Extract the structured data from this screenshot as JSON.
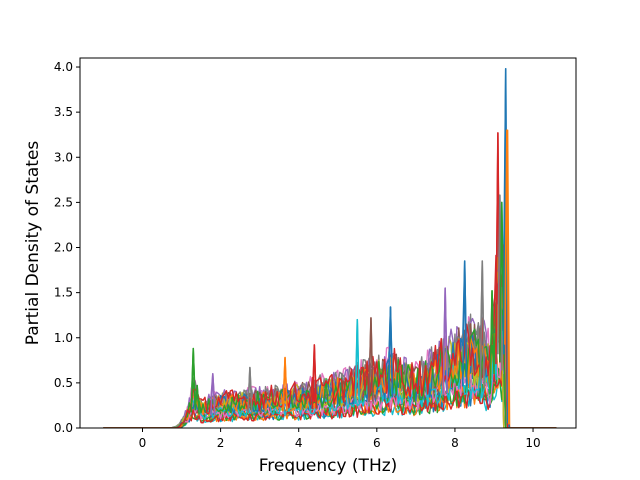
{
  "chart_data": {
    "type": "line",
    "title": "",
    "xlabel": "Frequency (THz)",
    "ylabel": "Partial Density of States",
    "xlim": [
      -1.6,
      11.1
    ],
    "ylim": [
      0.0,
      4.1
    ],
    "xticks": [
      0,
      2,
      4,
      6,
      8,
      10
    ],
    "yticks": [
      0.0,
      0.5,
      1.0,
      1.5,
      2.0,
      2.5,
      3.0,
      3.5,
      4.0
    ],
    "xtick_labels": [
      "0",
      "2",
      "4",
      "6",
      "8",
      "10"
    ],
    "ytick_labels": [
      "0.0",
      "0.5",
      "1.0",
      "1.5",
      "2.0",
      "2.5",
      "3.0",
      "3.5",
      "4.0"
    ],
    "grid": false,
    "legend": "none",
    "series_count": 24,
    "palette": [
      "#1f77b4",
      "#ff7f0e",
      "#2ca02c",
      "#d62728",
      "#9467bd",
      "#8c564b",
      "#e377c2",
      "#7f7f7f",
      "#bcbd22",
      "#17becf"
    ],
    "x_range_of_curves": [
      -1.0,
      10.6
    ],
    "frequency_step": 0.05,
    "envelope": {
      "x": [
        -1.0,
        0.5,
        0.9,
        1.2,
        1.3,
        1.5,
        2.0,
        3.0,
        4.0,
        5.0,
        6.0,
        6.4,
        7.0,
        7.8,
        8.2,
        8.7,
        8.9,
        9.1,
        9.2,
        9.3,
        9.35,
        9.5,
        10.6
      ],
      "y": [
        0.0,
        0.0,
        0.12,
        0.5,
        0.88,
        0.5,
        0.62,
        0.68,
        0.78,
        0.95,
        1.2,
        1.35,
        1.1,
        1.55,
        1.85,
        1.85,
        1.52,
        3.27,
        2.55,
        3.98,
        0.2,
        0.0,
        0.0
      ]
    },
    "peaks": [
      {
        "x": 1.3,
        "y": 0.88,
        "color": "#2ca02c"
      },
      {
        "x": 1.4,
        "y": 0.47,
        "color": "#2ca02c"
      },
      {
        "x": 1.8,
        "y": 0.6,
        "color": "#9467bd"
      },
      {
        "x": 2.75,
        "y": 0.67,
        "color": "#7f7f7f"
      },
      {
        "x": 3.65,
        "y": 0.78,
        "color": "#ff7f0e"
      },
      {
        "x": 4.4,
        "y": 0.92,
        "color": "#d62728"
      },
      {
        "x": 5.5,
        "y": 1.2,
        "color": "#17becf"
      },
      {
        "x": 5.85,
        "y": 1.22,
        "color": "#8c564b"
      },
      {
        "x": 6.35,
        "y": 1.34,
        "color": "#1f77b4"
      },
      {
        "x": 7.75,
        "y": 1.55,
        "color": "#9467bd"
      },
      {
        "x": 8.25,
        "y": 1.85,
        "color": "#1f77b4"
      },
      {
        "x": 8.7,
        "y": 1.85,
        "color": "#7f7f7f"
      },
      {
        "x": 8.95,
        "y": 1.52,
        "color": "#2ca02c"
      },
      {
        "x": 9.1,
        "y": 3.27,
        "color": "#d62728"
      },
      {
        "x": 9.15,
        "y": 2.58,
        "color": "#7f7f7f"
      },
      {
        "x": 9.2,
        "y": 2.5,
        "color": "#2ca02c"
      },
      {
        "x": 9.3,
        "y": 3.98,
        "color": "#1f77b4"
      },
      {
        "x": 9.33,
        "y": 3.3,
        "color": "#ff7f0e"
      }
    ]
  }
}
